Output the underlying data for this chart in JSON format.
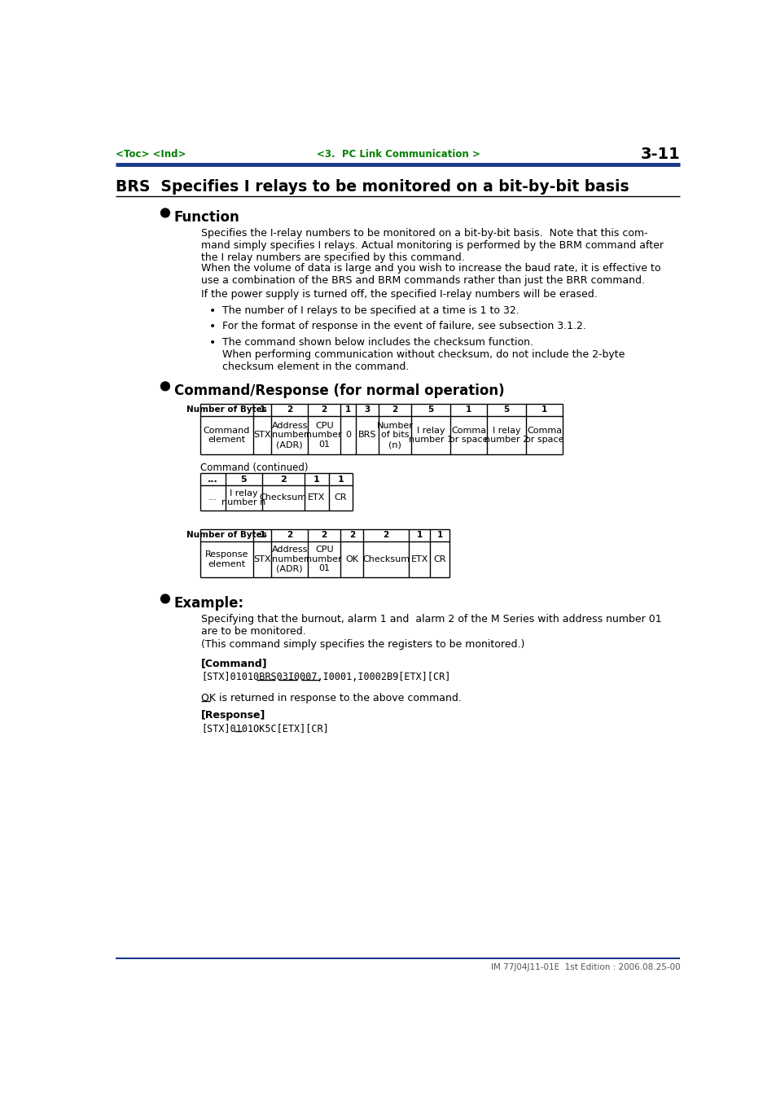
{
  "header_left": "<Toc> <Ind>",
  "header_center": "<3.  PC Link Communication >",
  "header_right": "3-11",
  "header_color": "#008000",
  "title": "BRS  Specifies I relays to be monitored on a bit-by-bit basis",
  "section1_title": "Function",
  "section1_body": [
    "Specifies the I-relay numbers to be monitored on a bit-by-bit basis.  Note that this com-\nmand simply specifies I relays. Actual monitoring is performed by the BRM command after\nthe I relay numbers are specified by this command.",
    "When the volume of data is large and you wish to increase the baud rate, it is effective to\nuse a combination of the BRS and BRM commands rather than just the BRR command.",
    "If the power supply is turned off, the specified I-relay numbers will be erased."
  ],
  "bullets": [
    "The number of I relays to be specified at a time is 1 to 32.",
    "For the format of response in the event of failure, see subsection 3.1.2.",
    "The command shown below includes the checksum function.\nWhen performing communication without checksum, do not include the 2-byte\nchecksum element in the command."
  ],
  "section2_title": "Command/Response (for normal operation)",
  "cmd_table1_headers": [
    "Number of Bytes",
    "1",
    "2",
    "2",
    "1",
    "3",
    "2",
    "5",
    "1",
    "5",
    "1"
  ],
  "cmd_table1_row": [
    "Command\nelement",
    "STX",
    "Address\nnumber\n(ADR)",
    "CPU\nnumber\n01",
    "0",
    "BRS",
    "Number\nof bits\n(n)",
    "I relay\nnumber 1",
    "Comma\nor space",
    "I relay\nnumber 2",
    "Comma\nor space"
  ],
  "cmd_continued_label": "Command (continued)",
  "cmd_table2_headers": [
    "...",
    "5",
    "2",
    "1",
    "1"
  ],
  "cmd_table2_row": [
    "...",
    "I relay\nnumber n",
    "Checksum",
    "ETX",
    "CR"
  ],
  "resp_table_headers": [
    "Number of Bytes",
    "1",
    "2",
    "2",
    "2",
    "2",
    "1",
    "1"
  ],
  "resp_table_row": [
    "Response\nelement",
    "STX",
    "Address\nnumber\n(ADR)",
    "CPU\nnumber\n01",
    "OK",
    "Checksum",
    "ETX",
    "CR"
  ],
  "section3_title": "Example:",
  "example_body1": "Specifying that the burnout, alarm 1 and  alarm 2 of the M Series with address number 01\nare to be monitored.",
  "example_body2": "(This command simply specifies the registers to be monitored.)",
  "cmd_label": "[Command]",
  "cmd_text": "[STX]01010BRS03I0007,I0001,I0002B9[ETX][CR]",
  "cmd_underline_parts": [
    "I0007",
    "I0001",
    "I0002"
  ],
  "ok_line": "OK is returned in response to the above command.",
  "resp_label": "[Response]",
  "resp_text": "[STX]0101OK5C[ETX][CR]",
  "resp_underline": "OK",
  "footer_text": "IM 77J04J11-01E  1st Edition : 2006.08.25-00",
  "blue_line_color": "#1a3a8a",
  "bg_color": "#ffffff"
}
